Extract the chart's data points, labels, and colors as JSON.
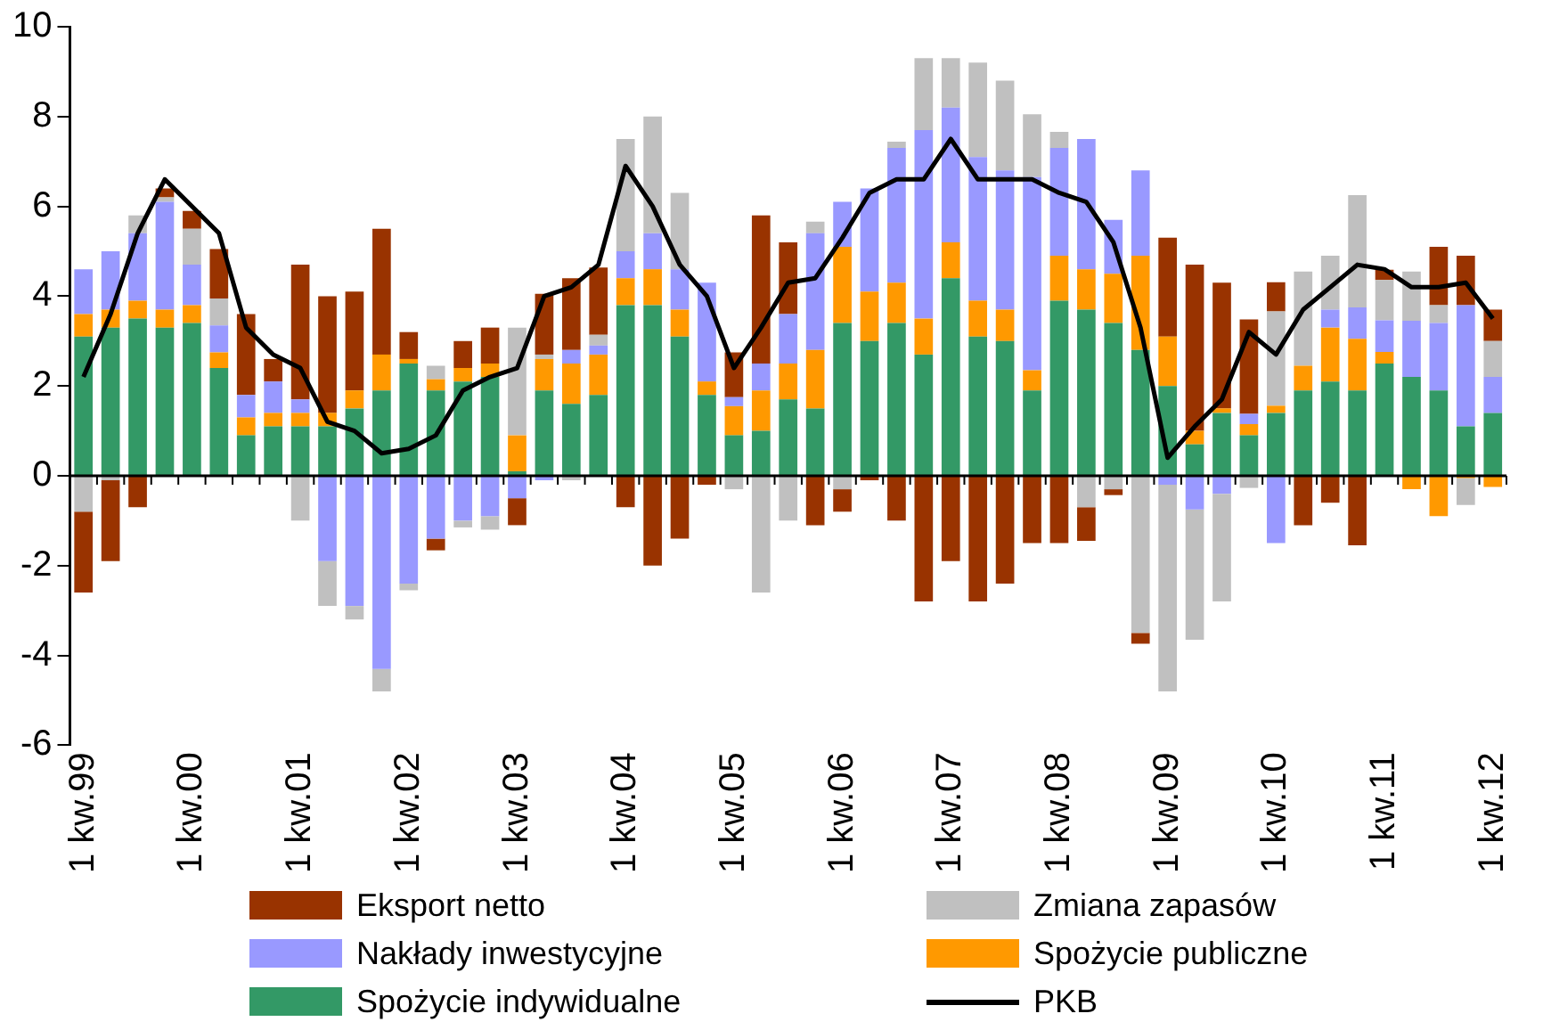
{
  "chart_data": {
    "type": "bar",
    "stacked": true,
    "categories": [
      "1 kw.99",
      null,
      null,
      null,
      "1 kw.00",
      null,
      null,
      null,
      "1 kw.01",
      null,
      null,
      null,
      "1 kw.02",
      null,
      null,
      null,
      "1 kw.03",
      null,
      null,
      null,
      "1 kw.04",
      null,
      null,
      null,
      "1 kw.05",
      null,
      null,
      null,
      "1 kw.06",
      null,
      null,
      null,
      "1 kw.07",
      null,
      null,
      null,
      "1 kw.08",
      null,
      null,
      null,
      "1 kw.09",
      null,
      null,
      null,
      "1 kw.10",
      null,
      null,
      null,
      "1 kw.11",
      null,
      null,
      null,
      "1 kw.12"
    ],
    "ylim": [
      -6,
      10
    ],
    "yticks": [
      -6,
      -4,
      -2,
      0,
      2,
      4,
      6,
      8,
      10
    ],
    "legend": "bottom",
    "series": [
      {
        "name": "Spożycie indywidualne",
        "color": "#339966",
        "values": [
          3.1,
          3.3,
          3.5,
          3.3,
          3.4,
          2.4,
          0.9,
          1.1,
          1.1,
          1.1,
          1.5,
          1.9,
          2.5,
          1.9,
          2.1,
          2.2,
          0.1,
          1.9,
          1.6,
          1.8,
          3.8,
          3.8,
          3.1,
          1.8,
          0.9,
          1.0,
          1.7,
          1.5,
          3.4,
          3.0,
          3.4,
          2.7,
          4.4,
          3.1,
          3.0,
          1.9,
          3.9,
          3.7,
          3.4,
          2.8,
          2.0,
          0.7,
          1.4,
          0.9,
          1.4,
          1.9,
          2.1,
          1.9,
          2.5,
          2.2,
          1.9,
          1.1,
          1.4
        ]
      },
      {
        "name": "Spożycie publiczne",
        "color": "#ff9900",
        "values": [
          0.5,
          0.4,
          0.4,
          0.4,
          0.4,
          0.35,
          0.4,
          0.3,
          0.3,
          0.3,
          0.4,
          0.8,
          0.1,
          0.25,
          0.3,
          0.3,
          0.8,
          0.7,
          0.9,
          0.9,
          0.6,
          0.8,
          0.6,
          0.3,
          0.65,
          0.9,
          0.8,
          1.3,
          1.7,
          1.1,
          0.9,
          0.8,
          0.8,
          0.8,
          0.7,
          0.45,
          1.0,
          0.9,
          1.1,
          2.1,
          1.1,
          0.3,
          0.1,
          0.25,
          0.16,
          0.55,
          1.2,
          1.15,
          0.26,
          -0.3,
          -0.9,
          -0.05,
          -0.25
        ]
      },
      {
        "name": "Nakłady inwestycyjne",
        "color": "#9999ff",
        "values": [
          1.0,
          1.3,
          1.5,
          2.4,
          0.9,
          0.6,
          0.5,
          0.7,
          0.3,
          -1.9,
          -2.9,
          -4.3,
          -2.4,
          -1.4,
          -1.0,
          -0.9,
          -0.5,
          -0.1,
          0.3,
          0.2,
          0.6,
          0.8,
          0.9,
          2.2,
          0.2,
          0.6,
          1.1,
          2.6,
          1.0,
          2.3,
          3.0,
          4.2,
          3.0,
          3.2,
          3.1,
          4.3,
          2.4,
          2.9,
          1.2,
          1.9,
          -0.2,
          -0.75,
          -0.4,
          0.23,
          -1.5,
          0,
          0.4,
          0.7,
          0.7,
          1.25,
          1.5,
          2.7,
          0.8
        ]
      },
      {
        "name": "Zmiana zapasów",
        "color": "#c0c0c0",
        "values": [
          -0.8,
          -0.1,
          0.4,
          0.1,
          0.8,
          0.6,
          0,
          null,
          -1.0,
          -1.0,
          -0.3,
          -0.5,
          -0.15,
          0.3,
          -0.15,
          -0.3,
          2.4,
          0.1,
          -0.1,
          0.24,
          2.5,
          2.6,
          1.7,
          0,
          -0.3,
          -2.6,
          -1.0,
          0.26,
          -0.3,
          0,
          0.14,
          1.6,
          1.1,
          2.1,
          2.0,
          1.4,
          0.36,
          -0.7,
          -0.3,
          -3.5,
          -4.6,
          -2.9,
          -2.4,
          -0.27,
          2.1,
          2.1,
          1.2,
          2.5,
          0.9,
          1.1,
          0.4,
          -0.6,
          0.8
        ]
      },
      {
        "name": "Eksport netto",
        "color": "#993300",
        "values": [
          -1.8,
          -1.8,
          -0.7,
          0.2,
          0.4,
          1.1,
          1.8,
          0.5,
          3.0,
          2.6,
          2.2,
          2.8,
          0.6,
          -0.26,
          0.6,
          0.8,
          -0.6,
          1.35,
          1.6,
          1.5,
          -0.7,
          -2.0,
          -1.4,
          -0.2,
          1.0,
          3.3,
          1.6,
          -1.1,
          -0.5,
          -0.1,
          -1.0,
          -2.8,
          -1.9,
          -2.8,
          -2.4,
          -1.5,
          -1.5,
          -0.75,
          -0.13,
          -0.24,
          2.2,
          3.7,
          2.8,
          2.1,
          0.65,
          -1.1,
          -0.6,
          -1.55,
          0.23,
          0,
          1.3,
          1.1,
          0.7
        ]
      },
      {
        "name": "PKB",
        "type": "line",
        "color": "#000000",
        "values": [
          2.2,
          3.6,
          5.4,
          6.6,
          6.0,
          5.4,
          3.3,
          2.7,
          2.4,
          1.2,
          1.0,
          0.5,
          0.6,
          0.9,
          1.9,
          2.2,
          2.4,
          4.0,
          4.2,
          4.7,
          6.9,
          6.0,
          4.7,
          4.0,
          2.4,
          3.3,
          4.3,
          4.4,
          5.3,
          6.3,
          6.6,
          6.6,
          7.5,
          6.6,
          6.6,
          6.6,
          6.3,
          6.1,
          5.2,
          3.3,
          0.4,
          1.1,
          1.7,
          3.2,
          2.7,
          3.7,
          4.2,
          4.7,
          4.6,
          4.2,
          4.2,
          4.3,
          3.5
        ]
      }
    ]
  }
}
